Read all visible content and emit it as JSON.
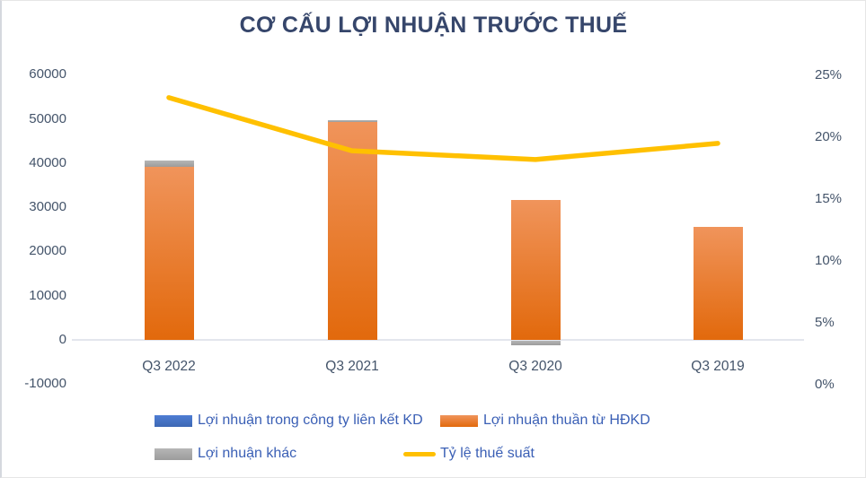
{
  "chart_data": {
    "type": "combo-stacked-bar-line",
    "title": "CƠ CẤU LỢI NHUẬN TRƯỚC THUẾ",
    "categories": [
      "Q3 2022",
      "Q3 2021",
      "Q3 2020",
      "Q3 2019"
    ],
    "bar_series": [
      {
        "name": "Lợi nhuận trong công ty liên kết KD",
        "color": "#4472C4",
        "color_top": "#4E7DD3",
        "color_bottom": "#3D68B4",
        "values": [
          100,
          100,
          50,
          30
        ]
      },
      {
        "name": "Lợi nhuận thuần từ HĐKD",
        "color": "#ED7D31",
        "color_top": "#F0945B",
        "color_bottom": "#E2690C",
        "values": [
          39000,
          49100,
          31600,
          25500
        ]
      },
      {
        "name": "Lợi nhuận khác",
        "color": "#A6A6A6",
        "color_top": "#B6B6B6",
        "color_bottom": "#9C9C9C",
        "values": [
          1500,
          450,
          -1100,
          0
        ]
      }
    ],
    "line_series": {
      "name": "Tỷ lệ thuế suất",
      "color": "#FFC000",
      "values_pct": [
        23.2,
        18.9,
        18.2,
        19.5
      ]
    },
    "left_axis": {
      "min": -10000,
      "max": 60000,
      "tick_step": 10000,
      "ticks": [
        60000,
        50000,
        40000,
        30000,
        20000,
        10000,
        0,
        -10000
      ]
    },
    "right_axis": {
      "min": 0,
      "max": 25,
      "tick_step": 5,
      "ticks": [
        "25%",
        "20%",
        "15%",
        "10%",
        "5%",
        "0%"
      ],
      "tick_values": [
        25,
        20,
        15,
        10,
        5,
        0
      ]
    },
    "legend_position": "bottom",
    "gridlines": "zero-line-only"
  },
  "colors": {
    "title_text": "#36466B",
    "axis_text": "#44546A",
    "legend_text": "#3A5FB5",
    "gridline": "#E3E6ED",
    "background": "#FFFFFF"
  }
}
